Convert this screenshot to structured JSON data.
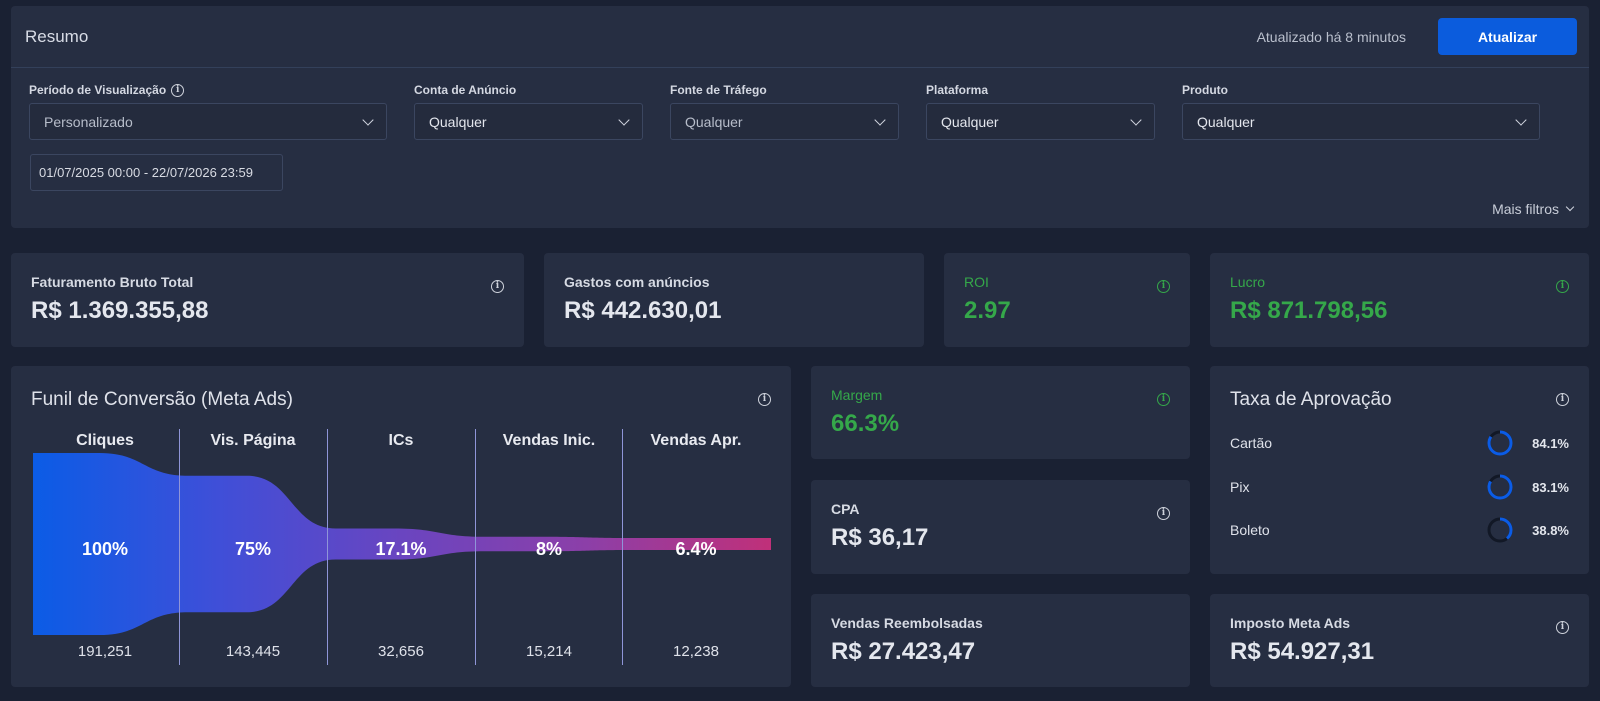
{
  "header": {
    "title": "Resumo",
    "updated_text": "Atualizado há 8 minutos",
    "refresh_label": "Atualizar"
  },
  "filters": {
    "period": {
      "label": "Período de Visualização",
      "value": "Personalizado"
    },
    "ad_account": {
      "label": "Conta de Anúncio",
      "value": "Qualquer"
    },
    "traffic_source": {
      "label": "Fonte de Tráfego",
      "value": "Qualquer"
    },
    "platform": {
      "label": "Plataforma",
      "value": "Qualquer"
    },
    "product": {
      "label": "Produto",
      "value": "Qualquer"
    },
    "date_range": "01/07/2025 00:00 - 22/07/2026 23:59",
    "more_filters": "Mais filtros"
  },
  "kpis": {
    "gross_revenue": {
      "label": "Faturamento Bruto Total",
      "value": "R$ 1.369.355,88"
    },
    "ad_spend": {
      "label": "Gastos com anúncios",
      "value": "R$ 442.630,01"
    },
    "roi": {
      "label": "ROI",
      "value": "2.97"
    },
    "profit": {
      "label": "Lucro",
      "value": "R$ 871.798,56"
    },
    "margin": {
      "label": "Margem",
      "value": "66.3%"
    },
    "cpa": {
      "label": "CPA",
      "value": "R$ 36,17"
    },
    "refunds": {
      "label": "Vendas Reembolsadas",
      "value": "R$ 27.423,47"
    },
    "meta_tax": {
      "label": "Imposto Meta Ads",
      "value": "R$ 54.927,31"
    }
  },
  "funnel": {
    "title": "Funil de Conversão (Meta Ads)",
    "stages": [
      {
        "name": "Cliques",
        "percent_label": "100%",
        "count": "191,251",
        "percent": 100
      },
      {
        "name": "Vis. Página",
        "percent_label": "75%",
        "count": "143,445",
        "percent": 75
      },
      {
        "name": "ICs",
        "percent_label": "17.1%",
        "count": "32,656",
        "percent": 17.1
      },
      {
        "name": "Vendas Inic.",
        "percent_label": "8%",
        "count": "15,214",
        "percent": 8
      },
      {
        "name": "Vendas Apr.",
        "percent_label": "6.4%",
        "count": "12,238",
        "percent": 6.4
      }
    ],
    "colors": [
      "#0b5ce6",
      "#3f4fd8",
      "#6a45c0",
      "#8c3fa8",
      "#c03079"
    ]
  },
  "approval": {
    "title": "Taxa de Aprovação",
    "accent": "#0b5ce6",
    "rows": [
      {
        "name": "Cartão",
        "value": "84.1%",
        "fraction": 0.841
      },
      {
        "name": "Pix",
        "value": "83.1%",
        "fraction": 0.831
      },
      {
        "name": "Boleto",
        "value": "38.8%",
        "fraction": 0.388
      }
    ]
  }
}
